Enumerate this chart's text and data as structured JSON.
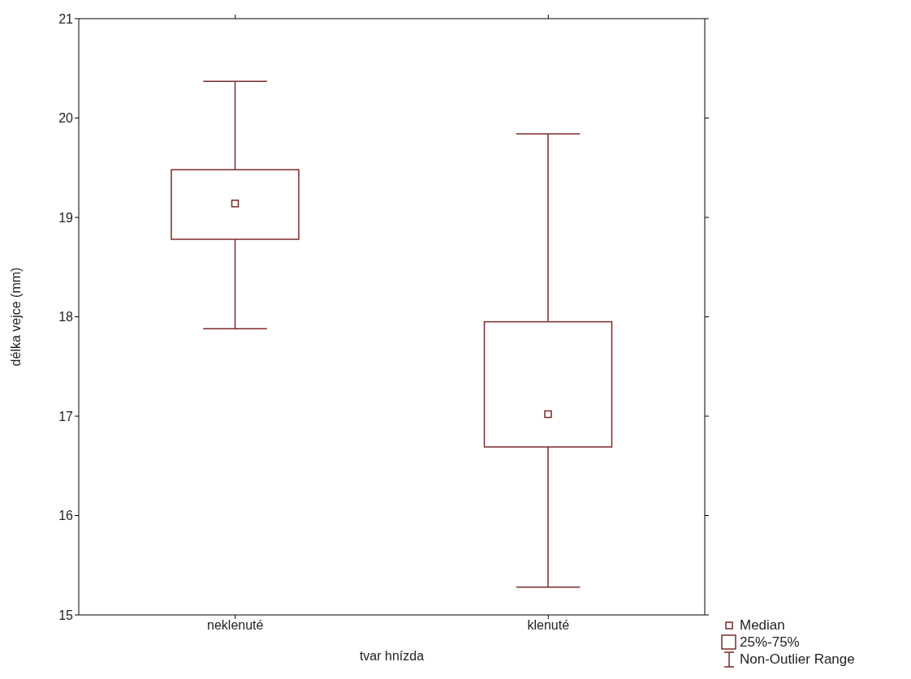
{
  "chart_data": {
    "type": "box",
    "xlabel": "tvar hnízda",
    "ylabel": "délka vejce (mm)",
    "categories": [
      "neklenuté",
      "klenuté"
    ],
    "series": [
      {
        "color": "#7b2a2a",
        "boxes": [
          {
            "low": 17.88,
            "q1": 18.78,
            "median": 19.14,
            "q3": 19.48,
            "high": 20.37
          },
          {
            "low": 15.28,
            "q1": 16.69,
            "median": 17.02,
            "q3": 17.95,
            "high": 19.84
          }
        ]
      }
    ],
    "ylim": [
      15,
      21
    ],
    "yticks": [
      15,
      16,
      17,
      18,
      19,
      20,
      21
    ],
    "annotations": [
      "Median",
      "25%-75%",
      "Non-Outlier Range"
    ]
  }
}
